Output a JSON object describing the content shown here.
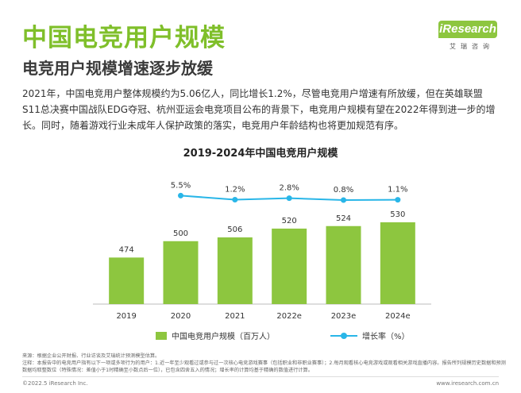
{
  "page": {
    "title": "中国电竞用户规模",
    "subtitle": "电竞用户规模增速逐步放缓",
    "intro": "2021年，中国电竞用户整体规模约为5.06亿人，同比增长1.2%，尽管电竞用户增速有所放缓，但在英雄联盟S11总决赛中国战队EDG夺冠、杭州亚运会电竞项目公布的背景下，电竞用户规模有望在2022年得到进一步的增长。同时，随着游戏行业未成年人保护政策的落实，电竞用户年龄结构也将更加规范有序。"
  },
  "logo": {
    "text": "iResearch",
    "sub": "艾瑞咨询"
  },
  "chart_data": {
    "type": "bar",
    "title": "2019-2024年中国电竞用户规模",
    "categories": [
      "2019",
      "2020",
      "2021",
      "2022e",
      "2023e",
      "2024e"
    ],
    "series": [
      {
        "name": "中国电竞用户规模（百万人）",
        "type": "bar",
        "values": [
          474,
          500,
          506,
          520,
          524,
          530
        ],
        "labels": [
          "474",
          "500",
          "506",
          "520",
          "524",
          "530"
        ],
        "color": "#8dc63f"
      },
      {
        "name": "增长率（%）",
        "type": "line",
        "values": [
          null,
          5.5,
          1.2,
          2.8,
          0.8,
          1.1
        ],
        "labels": [
          "",
          "5.5%",
          "1.2%",
          "2.8%",
          "0.8%",
          "1.1%"
        ],
        "color": "#29b6e8"
      }
    ]
  },
  "notes": {
    "source": "来源：根据企业公开财报、行业访谈及艾瑞统计预测模型估算。",
    "note": "注释：本报告中的电竞用户指有以下一项或多项行为的用户：1.近一年至少观看过或参与过一次核心电竞游戏赛事（包括职业和非职业赛事）；2.每月观看核心电竞游戏或观看相关游戏直播内容。报告所列规模历史数据和预测数据均取整数位（特殊情况：差值小于1时精确至小数点后一位），已包含四舍五入的情况；增长率的计算均基于精确的数值进行计算。"
  },
  "footer": {
    "copyright": "©2022.5 iResearch Inc.",
    "url": "www.iresearch.com.cn"
  }
}
